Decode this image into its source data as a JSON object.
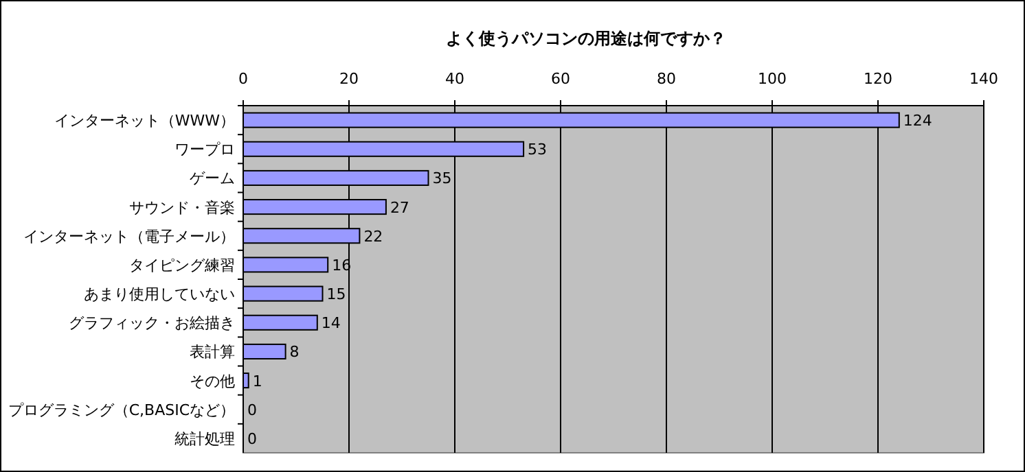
{
  "chart_data": {
    "type": "bar",
    "orientation": "horizontal",
    "title": "よく使うパソコンの用途は何ですか？",
    "categories": [
      "インターネット（WWW）",
      "ワープロ",
      "ゲーム",
      "サウンド・音楽",
      "インターネット（電子メール）",
      "タイピング練習",
      "あまり使用していない",
      "グラフィック・お絵描き",
      "表計算",
      "その他",
      "プログラミング（C,BASICなど）",
      "統計処理"
    ],
    "values": [
      124,
      53,
      35,
      27,
      22,
      16,
      15,
      14,
      8,
      1,
      0,
      0
    ],
    "color": "#9999ff",
    "xlim": [
      0,
      140
    ],
    "xticks": [
      0,
      20,
      40,
      60,
      80,
      100,
      120,
      140
    ],
    "grid": "x",
    "data_labels": true
  }
}
